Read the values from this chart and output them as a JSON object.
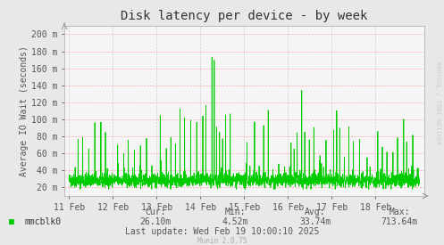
{
  "title": "Disk latency per device - by week",
  "ylabel": "Average IO Wait (seconds)",
  "background_color": "#e8e8e8",
  "plot_background": "#f5f5f5",
  "grid_color": "#ffaaaa",
  "line_color": "#00cc00",
  "line_width": 0.6,
  "ylim_min": 0.01,
  "ylim_max": 0.21,
  "yticks": [
    0.02,
    0.04,
    0.06,
    0.08,
    0.1,
    0.12,
    0.14,
    0.16,
    0.18,
    0.2
  ],
  "ytick_labels": [
    "20 m",
    "40 m",
    "60 m",
    "80 m",
    "100 m",
    "120 m",
    "140 m",
    "160 m",
    "180 m",
    "200 m"
  ],
  "xtick_labels": [
    "11 Feb",
    "12 Feb",
    "13 Feb",
    "14 Feb",
    "15 Feb",
    "16 Feb",
    "17 Feb",
    "18 Feb"
  ],
  "legend_label": "mmcblk0",
  "legend_color": "#00cc00",
  "cur_label": "Cur:",
  "cur_value": "26.10m",
  "min_label": "Min:",
  "min_value": "4.52m",
  "avg_label": "Avg:",
  "avg_value": "33.74m",
  "max_label": "Max:",
  "max_value": "713.64m",
  "last_update": "Last update: Wed Feb 19 10:00:10 2025",
  "munin_version": "Munin 2.0.75",
  "watermark": "RRDTOOL / TOBI OETIKER",
  "title_fontsize": 10,
  "axis_fontsize": 7,
  "legend_fontsize": 7,
  "footer_fontsize": 7,
  "watermark_fontsize": 5
}
